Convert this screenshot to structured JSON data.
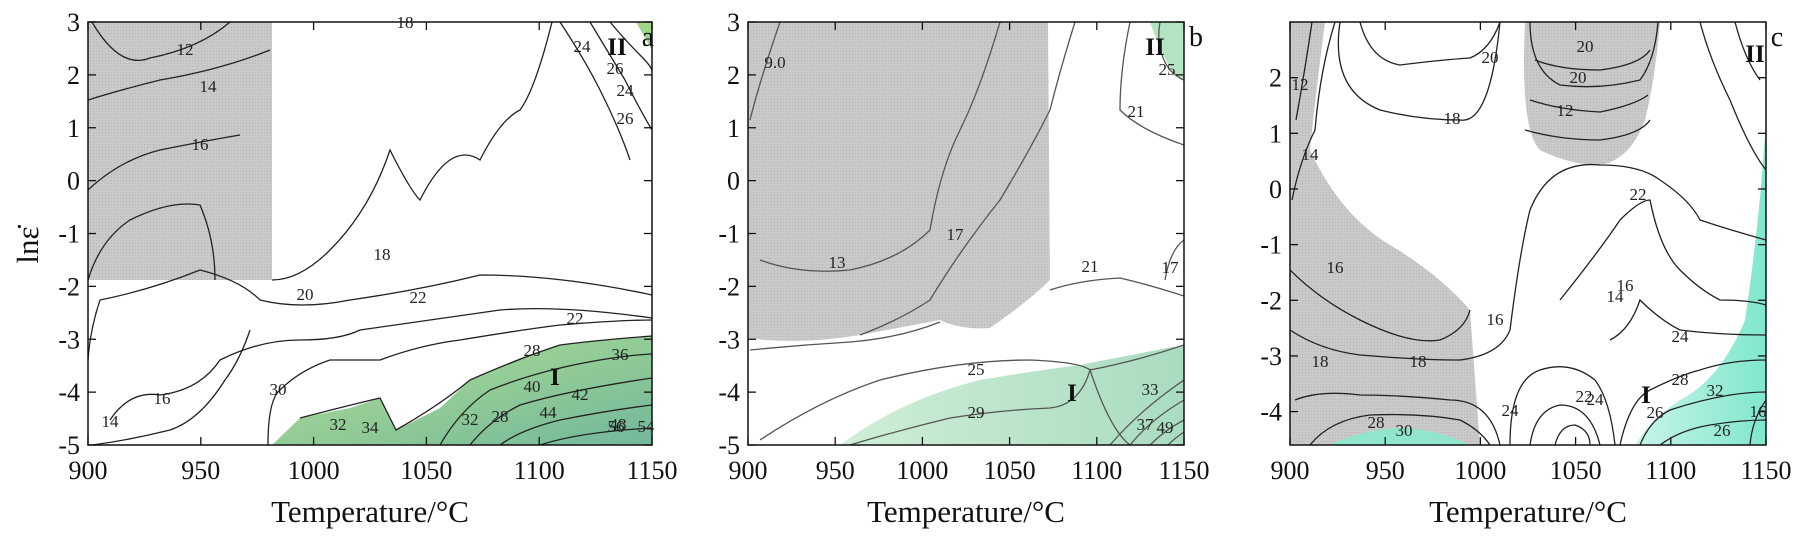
{
  "chart_data": [
    {
      "type": "contour",
      "panel_label": "a",
      "xlabel": "Temperature/°C",
      "ylabel": "lnε̇",
      "xlim": [
        900,
        1150
      ],
      "ylim": [
        -5,
        3
      ],
      "xticks": [
        "900",
        "950",
        "1000",
        "1050",
        "1100",
        "1150"
      ],
      "yticks": [
        "-5",
        "-4",
        "-3",
        "-2",
        "-1",
        "0",
        "1",
        "2",
        "3"
      ],
      "shaded_instability_region": {
        "temperature": [
          900,
          980
        ],
        "ln_strain_rate": [
          -1.9,
          3
        ],
        "color": "#cfcfcf"
      },
      "stable_regions": [
        {
          "label": "I",
          "temperature": 1110,
          "ln_strain_rate": -3.9,
          "color": "#a8d68c"
        },
        {
          "label": "II",
          "temperature": 1140,
          "ln_strain_rate": 2.6,
          "color": "#9fd68a"
        }
      ],
      "contour_levels": [
        "12",
        "14",
        "16",
        "18",
        "18",
        "20",
        "22",
        "22",
        "24",
        "24",
        "26",
        "26",
        "28",
        "28",
        "30",
        "32",
        "32",
        "34",
        "36",
        "40",
        "42",
        "44",
        "48",
        "54",
        "56",
        "16",
        "14"
      ]
    },
    {
      "type": "contour",
      "panel_label": "b",
      "xlabel": "Temperature/°C",
      "xlim": [
        900,
        1150
      ],
      "ylim": [
        -5,
        3
      ],
      "xticks": [
        "900",
        "950",
        "1000",
        "1050",
        "1100",
        "1150"
      ],
      "yticks": [
        "-5",
        "-4",
        "-3",
        "-2",
        "-1",
        "0",
        "1",
        "2",
        "3"
      ],
      "shaded_instability_region": {
        "temperature": [
          900,
          1072
        ],
        "ln_strain_rate": [
          -3.0,
          3
        ],
        "color": "#c4c4c4"
      },
      "stable_regions": [
        {
          "label": "I",
          "temperature": 1085,
          "ln_strain_rate": -4.2,
          "color": "#c6e8cf"
        },
        {
          "label": "II",
          "temperature": 1132,
          "ln_strain_rate": 2.6,
          "color": "#b3e3c0"
        }
      ],
      "contour_levels": [
        "9.0",
        "13",
        "17",
        "17",
        "21",
        "21",
        "25",
        "25",
        "29",
        "33",
        "37",
        "49"
      ]
    },
    {
      "type": "contour",
      "panel_label": "c",
      "xlabel": "Temperature/°C",
      "xlim": [
        900,
        1150
      ],
      "ylim": [
        -4.6,
        3
      ],
      "xticks": [
        "900",
        "950",
        "1000",
        "1050",
        "1100",
        "1150"
      ],
      "yticks": [
        "-4",
        "-3",
        "-2",
        "-1",
        "0",
        "1",
        "2"
      ],
      "shaded_instability_region": [
        {
          "temperature": [
            900,
            1000
          ],
          "ln_strain_rate": [
            -4.6,
            3
          ],
          "color": "#c6c6c6"
        },
        {
          "temperature": [
            1022,
            1090
          ],
          "ln_strain_rate": [
            0.2,
            3
          ],
          "color": "#c6c6c6"
        }
      ],
      "stable_regions": [
        {
          "label": "I",
          "temperature": 1088,
          "ln_strain_rate": -4.1,
          "color": "#9feed9"
        },
        {
          "label": "II",
          "temperature": 1140,
          "ln_strain_rate": 2.6,
          "color": "#9feed9"
        }
      ],
      "contour_levels": [
        "12",
        "14",
        "16",
        "16",
        "18",
        "18",
        "18",
        "20",
        "20",
        "20",
        "12",
        "14",
        "16",
        "22",
        "24",
        "22",
        "24",
        "26",
        "28",
        "30",
        "32",
        "28",
        "26",
        "16",
        "24"
      ]
    }
  ]
}
